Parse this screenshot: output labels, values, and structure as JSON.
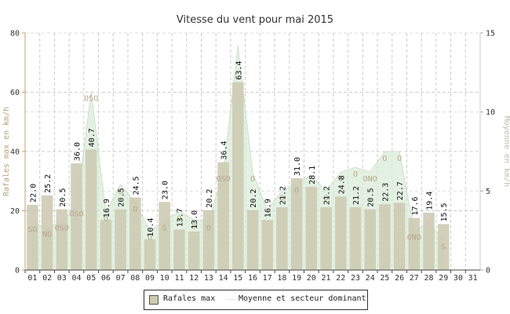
{
  "chart_data": {
    "type": "bar",
    "title": "Vitesse du vent pour mai 2015",
    "ylabel": "Rafales max en km/h",
    "y2label": "Moyenne en km/h",
    "ylim": [
      0,
      80
    ],
    "y2lim": [
      0,
      15
    ],
    "yticks": [
      "0",
      "20",
      "40",
      "60",
      "80"
    ],
    "y2ticks": [
      "0",
      "5",
      "10",
      "15"
    ],
    "categories": [
      "01",
      "02",
      "03",
      "04",
      "05",
      "06",
      "07",
      "08",
      "09",
      "10",
      "11",
      "12",
      "13",
      "14",
      "15",
      "16",
      "17",
      "18",
      "19",
      "20",
      "21",
      "22",
      "23",
      "24",
      "25",
      "26",
      "27",
      "28",
      "29",
      "30",
      "31"
    ],
    "series": [
      {
        "name": "Rafales max",
        "type": "bar",
        "color": "#ccc9b0",
        "values": [
          22.0,
          25.2,
          20.5,
          36.0,
          40.7,
          16.9,
          20.5,
          24.5,
          10.4,
          23.0,
          13.7,
          13.0,
          20.2,
          36.4,
          63.4,
          20.2,
          16.9,
          21.2,
          31.0,
          28.1,
          21.2,
          24.8,
          21.2,
          20.5,
          22.3,
          22.7,
          17.6,
          19.4,
          15.5,
          null,
          null
        ],
        "labels": [
          "22.0",
          "25.2",
          "20.5",
          "36.0",
          "40.7",
          "16.9",
          "20.5",
          "24.5",
          "10.4",
          "23.0",
          "13.7",
          "13.0",
          "20.2",
          "36.4",
          "63.4",
          "20.2",
          "16.9",
          "21.2",
          "31.0",
          "28.1",
          "21.2",
          "24.8",
          "21.2",
          "20.5",
          "22.3",
          "22.7",
          "17.6",
          "19.4",
          "15.5",
          "",
          ""
        ]
      },
      {
        "name": "Moyenne et secteur dominant",
        "type": "area",
        "axis": "y2",
        "color": "#d9ecd9",
        "values": [
          3.0,
          2.7,
          3.1,
          4.0,
          11.3,
          3.7,
          5.4,
          4.3,
          2.5,
          3.1,
          3.7,
          3.2,
          3.1,
          6.2,
          14.2,
          6.2,
          3.8,
          5.0,
          5.5,
          6.0,
          5.0,
          6.2,
          6.5,
          6.2,
          7.5,
          7.5,
          2.5,
          3.0,
          1.9,
          null,
          null
        ],
        "directions": [
          "SO",
          "NO",
          "OSO",
          "OSO",
          "OSO",
          "O",
          "S",
          "O",
          "O",
          "S",
          "O",
          "O",
          "O",
          "OSO",
          "",
          "O",
          "",
          "O",
          "O",
          "",
          "O",
          "O",
          "O",
          "ONO",
          "O",
          "O",
          "ONO",
          "",
          "S",
          "",
          ""
        ]
      }
    ],
    "legend": "bottom-center",
    "grid": true
  }
}
